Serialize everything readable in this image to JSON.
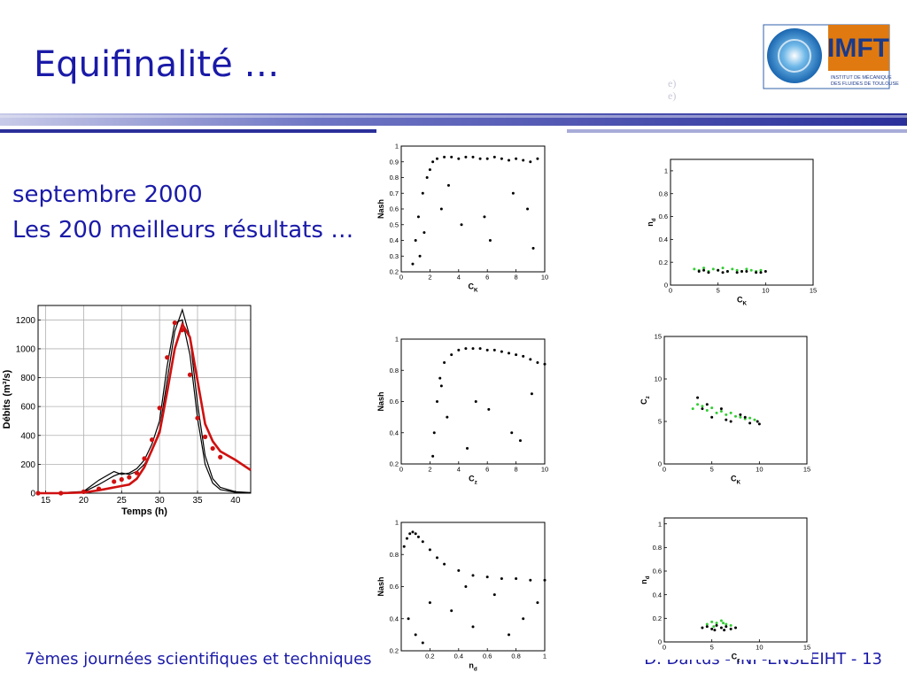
{
  "header": {
    "title": "Equifinalité …"
  },
  "ghost": [
    "e)",
    "e)"
  ],
  "logo": {
    "name": "IMFT",
    "line1": "INSTITUT DE MÉCANIQUE",
    "line2": "DES FLUIDES DE TOULOUSE"
  },
  "subtitle": [
    "septembre 2000",
    "Les 200 meilleurs résultats …"
  ],
  "footer": {
    "left": "7èmes journées scientifiques et techniques",
    "right": "D. Dartus - INP-ENSEEIHT - 13"
  },
  "chart_data": [
    {
      "type": "line",
      "xlabel": "Temps (h)",
      "ylabel": "Débits (m³/s)",
      "grid": true,
      "xlim": [
        14,
        42
      ],
      "ylim": [
        0,
        1300
      ],
      "xticks": [
        15,
        20,
        25,
        30,
        35,
        40
      ],
      "yticks": [
        0,
        200,
        400,
        600,
        800,
        1000,
        1200
      ],
      "x": [
        14,
        17,
        20,
        22,
        24,
        25,
        26,
        27,
        28,
        29,
        30,
        31,
        32,
        33,
        34,
        35,
        36,
        37,
        38,
        40,
        42
      ],
      "series": [
        {
          "color": "#000000",
          "mode": "line",
          "values": [
            0,
            2,
            8,
            60,
            120,
            140,
            130,
            150,
            200,
            290,
            440,
            780,
            1120,
            1270,
            1080,
            620,
            260,
            100,
            40,
            10,
            4
          ]
        },
        {
          "color": "#000000",
          "mode": "line",
          "values": [
            0,
            3,
            12,
            90,
            150,
            130,
            140,
            170,
            230,
            340,
            500,
            880,
            1180,
            1200,
            960,
            520,
            200,
            70,
            25,
            6,
            2
          ]
        },
        {
          "color": "#d01010",
          "mode": "line",
          "values": [
            0,
            0,
            5,
            20,
            40,
            50,
            60,
            100,
            180,
            300,
            420,
            700,
            1000,
            1170,
            1080,
            780,
            480,
            360,
            290,
            230,
            160
          ]
        },
        {
          "color": "#d01010",
          "mode": "points",
          "values": [
            0,
            0,
            10,
            30,
            80,
            95,
            110,
            140,
            240,
            370,
            590,
            940,
            1180,
            1130,
            820,
            520,
            390,
            310,
            250,
            null,
            null
          ]
        }
      ]
    },
    {
      "type": "scatter",
      "xlabel": "C",
      "xlabel_sub": "K",
      "ylabel": "Nash",
      "xlim": [
        0,
        10
      ],
      "ylim": [
        0.2,
        1
      ],
      "xticks": [
        0,
        2,
        4,
        6,
        8,
        10
      ],
      "yticks": [
        0.2,
        0.3,
        0.4,
        0.5,
        0.6,
        0.7,
        0.8,
        0.9,
        1
      ],
      "series": [
        {
          "color": "#000000",
          "x": [
            0.8,
            1,
            1.2,
            1.5,
            1.8,
            2,
            2.2,
            2.5,
            3,
            3.5,
            4,
            4.5,
            5,
            5.5,
            6,
            6.5,
            7,
            7.5,
            8,
            8.5,
            9,
            9.5,
            1.3,
            2.8,
            4.2,
            6.2,
            7.8,
            9.2,
            3.3,
            5.8,
            8.8,
            1.6
          ],
          "values": [
            0.25,
            0.4,
            0.55,
            0.7,
            0.8,
            0.85,
            0.9,
            0.92,
            0.93,
            0.93,
            0.92,
            0.93,
            0.93,
            0.92,
            0.92,
            0.93,
            0.92,
            0.91,
            0.92,
            0.91,
            0.9,
            0.92,
            0.3,
            0.6,
            0.5,
            0.4,
            0.7,
            0.35,
            0.75,
            0.55,
            0.6,
            0.45
          ]
        }
      ]
    },
    {
      "type": "scatter",
      "xlabel": "C",
      "xlabel_sub": "K",
      "ylabel": "n",
      "ylabel_sub": "d",
      "xlim": [
        0,
        15
      ],
      "ylim": [
        0,
        1.1
      ],
      "xticks": [
        0,
        5,
        10,
        15
      ],
      "yticks": [
        0,
        0.2,
        0.4,
        0.6,
        0.8,
        1
      ],
      "series": [
        {
          "color": "#33cc33",
          "x": [
            2.5,
            3,
            3.5,
            4,
            4.5,
            5,
            5.5,
            6,
            6.5,
            7,
            7.5,
            8,
            8.5,
            9,
            9.5
          ],
          "values": [
            0.14,
            0.13,
            0.15,
            0.12,
            0.14,
            0.13,
            0.15,
            0.12,
            0.14,
            0.13,
            0.12,
            0.14,
            0.13,
            0.12,
            0.13
          ]
        },
        {
          "color": "#000000",
          "x": [
            3,
            4,
            5,
            6,
            7,
            8,
            9,
            10,
            3.5,
            5.5,
            7.5,
            9.5
          ],
          "values": [
            0.12,
            0.11,
            0.13,
            0.12,
            0.11,
            0.12,
            0.11,
            0.12,
            0.13,
            0.11,
            0.12,
            0.11
          ]
        }
      ]
    },
    {
      "type": "scatter",
      "xlabel": "C",
      "xlabel_sub": "z",
      "ylabel": "Nash",
      "xlim": [
        0,
        10
      ],
      "ylim": [
        0.2,
        1
      ],
      "xticks": [
        0,
        2,
        4,
        6,
        8,
        10
      ],
      "yticks": [
        0.2,
        0.4,
        0.6,
        0.8,
        1
      ],
      "series": [
        {
          "color": "#000000",
          "x": [
            2.2,
            2.3,
            2.5,
            2.7,
            3,
            3.5,
            4,
            4.5,
            5,
            5.5,
            6,
            6.5,
            7,
            7.5,
            8,
            8.5,
            9,
            9.5,
            10,
            3.2,
            4.6,
            6.1,
            7.7,
            9.1,
            2.8,
            5.2,
            8.3
          ],
          "values": [
            0.25,
            0.4,
            0.6,
            0.75,
            0.85,
            0.9,
            0.93,
            0.94,
            0.94,
            0.94,
            0.93,
            0.93,
            0.92,
            0.91,
            0.9,
            0.89,
            0.87,
            0.85,
            0.84,
            0.5,
            0.3,
            0.55,
            0.4,
            0.65,
            0.7,
            0.6,
            0.35
          ]
        }
      ]
    },
    {
      "type": "scatter",
      "xlabel": "C",
      "xlabel_sub": "K",
      "ylabel": "C",
      "ylabel_sub": "z",
      "xlim": [
        0,
        15
      ],
      "ylim": [
        0,
        15
      ],
      "xticks": [
        0,
        5,
        10,
        15
      ],
      "yticks": [
        0,
        5,
        10,
        15
      ],
      "series": [
        {
          "color": "#33cc33",
          "x": [
            3,
            3.5,
            4,
            4.5,
            5,
            5.5,
            6,
            6.5,
            7,
            7.5,
            8,
            8.5,
            9,
            9.5
          ],
          "values": [
            6.5,
            7,
            6.8,
            6.3,
            6.6,
            6,
            6.2,
            5.8,
            6,
            5.6,
            5.5,
            5.3,
            5.4,
            5.2
          ]
        },
        {
          "color": "#000000",
          "x": [
            3.5,
            4,
            5,
            6,
            7,
            8,
            9,
            10,
            4.5,
            6.5,
            8.5,
            9.8
          ],
          "values": [
            7.8,
            6.5,
            5.5,
            6.5,
            5,
            5.8,
            4.8,
            4.7,
            7,
            5.2,
            5.5,
            5
          ]
        }
      ]
    },
    {
      "type": "scatter",
      "xlabel": "n",
      "xlabel_sub": "d",
      "ylabel": "Nash",
      "xlim": [
        0,
        1
      ],
      "ylim": [
        0.2,
        1
      ],
      "xticks": [
        0.2,
        0.4,
        0.6,
        0.8,
        1
      ],
      "yticks": [
        0.2,
        0.4,
        0.6,
        0.8,
        1
      ],
      "series": [
        {
          "color": "#000000",
          "x": [
            0.02,
            0.04,
            0.06,
            0.08,
            0.1,
            0.12,
            0.15,
            0.2,
            0.25,
            0.3,
            0.4,
            0.5,
            0.6,
            0.7,
            0.8,
            0.9,
            1,
            0.05,
            0.1,
            0.2,
            0.35,
            0.5,
            0.65,
            0.85,
            0.15,
            0.45,
            0.75,
            0.95
          ],
          "values": [
            0.85,
            0.9,
            0.93,
            0.94,
            0.93,
            0.91,
            0.88,
            0.83,
            0.78,
            0.74,
            0.7,
            0.67,
            0.66,
            0.65,
            0.65,
            0.64,
            0.64,
            0.4,
            0.3,
            0.5,
            0.45,
            0.35,
            0.55,
            0.4,
            0.25,
            0.6,
            0.3,
            0.5
          ]
        }
      ]
    },
    {
      "type": "scatter",
      "xlabel": "C",
      "xlabel_sub": "z",
      "ylabel": "n",
      "ylabel_sub": "d",
      "xlim": [
        0,
        15
      ],
      "ylim": [
        0,
        1.05
      ],
      "xticks": [
        0,
        5,
        10,
        15
      ],
      "yticks": [
        0,
        0.2,
        0.4,
        0.6,
        0.8,
        1
      ],
      "series": [
        {
          "color": "#33cc33",
          "x": [
            4.5,
            5,
            5.5,
            6,
            6.5,
            7,
            5.2,
            6.2
          ],
          "values": [
            0.15,
            0.17,
            0.16,
            0.18,
            0.15,
            0.14,
            0.13,
            0.16
          ]
        },
        {
          "color": "#000000",
          "x": [
            4,
            4.5,
            5,
            5.5,
            6,
            6.5,
            7,
            7.5,
            5.3,
            6.3
          ],
          "values": [
            0.12,
            0.13,
            0.11,
            0.14,
            0.12,
            0.13,
            0.11,
            0.12,
            0.1,
            0.1
          ]
        }
      ]
    }
  ]
}
